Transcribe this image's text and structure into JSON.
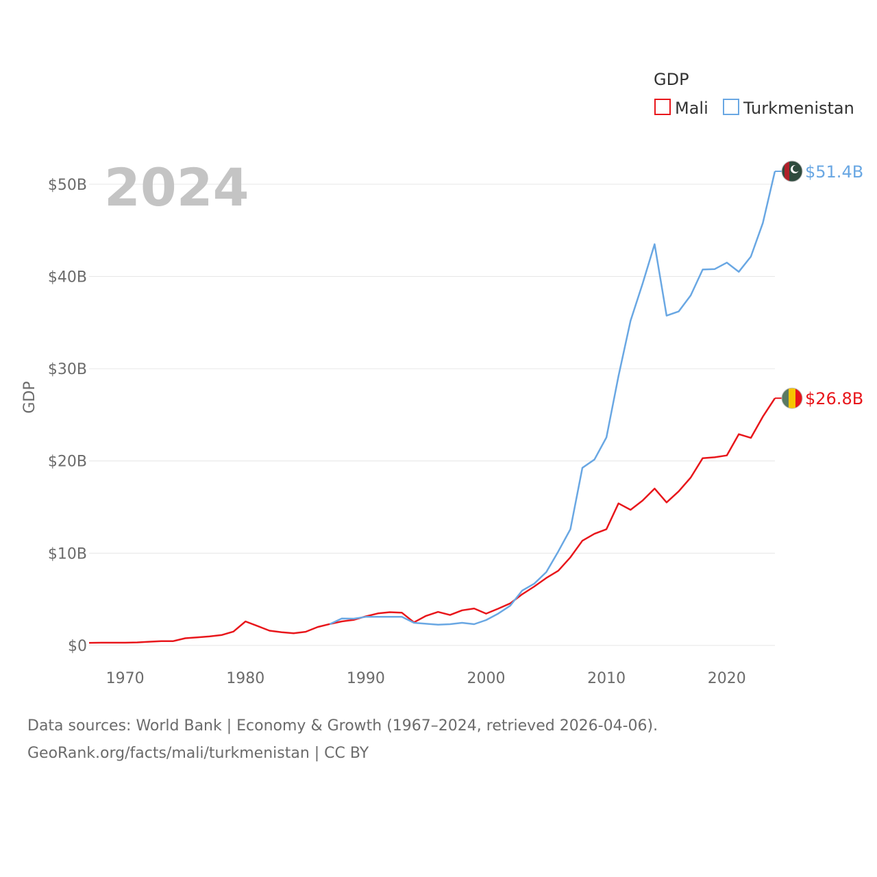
{
  "chart_data": {
    "type": "line",
    "title": "",
    "year_display": "2024",
    "ylabel": "GDP",
    "xlabel": "",
    "xlim": [
      1967,
      2024
    ],
    "ylim": [
      0,
      51.4
    ],
    "y_ticks": [
      0,
      10,
      20,
      30,
      40,
      50
    ],
    "y_tick_labels": [
      "$0",
      "$10B",
      "$20B",
      "$30B",
      "$40B",
      "$50B"
    ],
    "x_ticks": [
      1970,
      1980,
      1990,
      2000,
      2010,
      2020
    ],
    "x_tick_labels": [
      "1970",
      "1980",
      "1990",
      "2000",
      "2010",
      "2020"
    ],
    "legend": {
      "title": "GDP",
      "position": "top-right",
      "entries": [
        "Mali",
        "Turkmenistan"
      ]
    },
    "series": [
      {
        "name": "Mali",
        "color": "#e8161b",
        "end_label": "$26.8B",
        "x": [
          1967,
          1968,
          1969,
          1970,
          1971,
          1972,
          1973,
          1974,
          1975,
          1976,
          1977,
          1978,
          1979,
          1980,
          1981,
          1982,
          1983,
          1984,
          1985,
          1986,
          1987,
          1988,
          1989,
          1990,
          1991,
          1992,
          1993,
          1994,
          1995,
          1996,
          1997,
          1998,
          1999,
          2000,
          2001,
          2002,
          2003,
          2004,
          2005,
          2006,
          2007,
          2008,
          2009,
          2010,
          2011,
          2012,
          2013,
          2014,
          2015,
          2016,
          2017,
          2018,
          2019,
          2020,
          2021,
          2022,
          2023,
          2024
        ],
        "values": [
          0.28,
          0.3,
          0.3,
          0.3,
          0.33,
          0.4,
          0.46,
          0.47,
          0.78,
          0.87,
          0.97,
          1.12,
          1.5,
          2.6,
          2.1,
          1.6,
          1.43,
          1.32,
          1.48,
          2.0,
          2.32,
          2.6,
          2.77,
          3.15,
          3.47,
          3.6,
          3.54,
          2.5,
          3.2,
          3.63,
          3.3,
          3.8,
          4.0,
          3.45,
          3.98,
          4.55,
          5.55,
          6.39,
          7.31,
          8.1,
          9.55,
          11.35,
          12.1,
          12.6,
          15.4,
          14.7,
          15.7,
          17.0,
          15.5,
          16.7,
          18.2,
          20.3,
          20.4,
          20.6,
          22.9,
          22.5,
          24.8,
          26.8
        ]
      },
      {
        "name": "Turkmenistan",
        "color": "#69a7e3",
        "end_label": "$51.4B",
        "x": [
          1987,
          1988,
          1989,
          1990,
          1991,
          1992,
          1993,
          1994,
          1995,
          1996,
          1997,
          1998,
          1999,
          2000,
          2001,
          2002,
          2003,
          2004,
          2005,
          2006,
          2007,
          2008,
          2009,
          2010,
          2011,
          2012,
          2013,
          2014,
          2015,
          2016,
          2017,
          2018,
          2019,
          2020,
          2021,
          2022,
          2023,
          2024
        ],
        "values": [
          2.3,
          2.92,
          2.9,
          3.1,
          3.1,
          3.1,
          3.1,
          2.45,
          2.35,
          2.25,
          2.3,
          2.45,
          2.3,
          2.75,
          3.45,
          4.3,
          5.95,
          6.7,
          7.95,
          10.2,
          12.6,
          19.25,
          20.15,
          22.55,
          29.2,
          35.2,
          39.2,
          43.5,
          35.75,
          36.2,
          37.95,
          40.75,
          40.8,
          41.5,
          40.5,
          42.15,
          45.8,
          51.4
        ]
      }
    ]
  },
  "footer": {
    "line1": "Data sources: World Bank | Economy & Growth (1967–2024, retrieved 2026-04-06).",
    "line2": "GeoRank.org/facts/mali/turkmenistan | CC BY"
  }
}
